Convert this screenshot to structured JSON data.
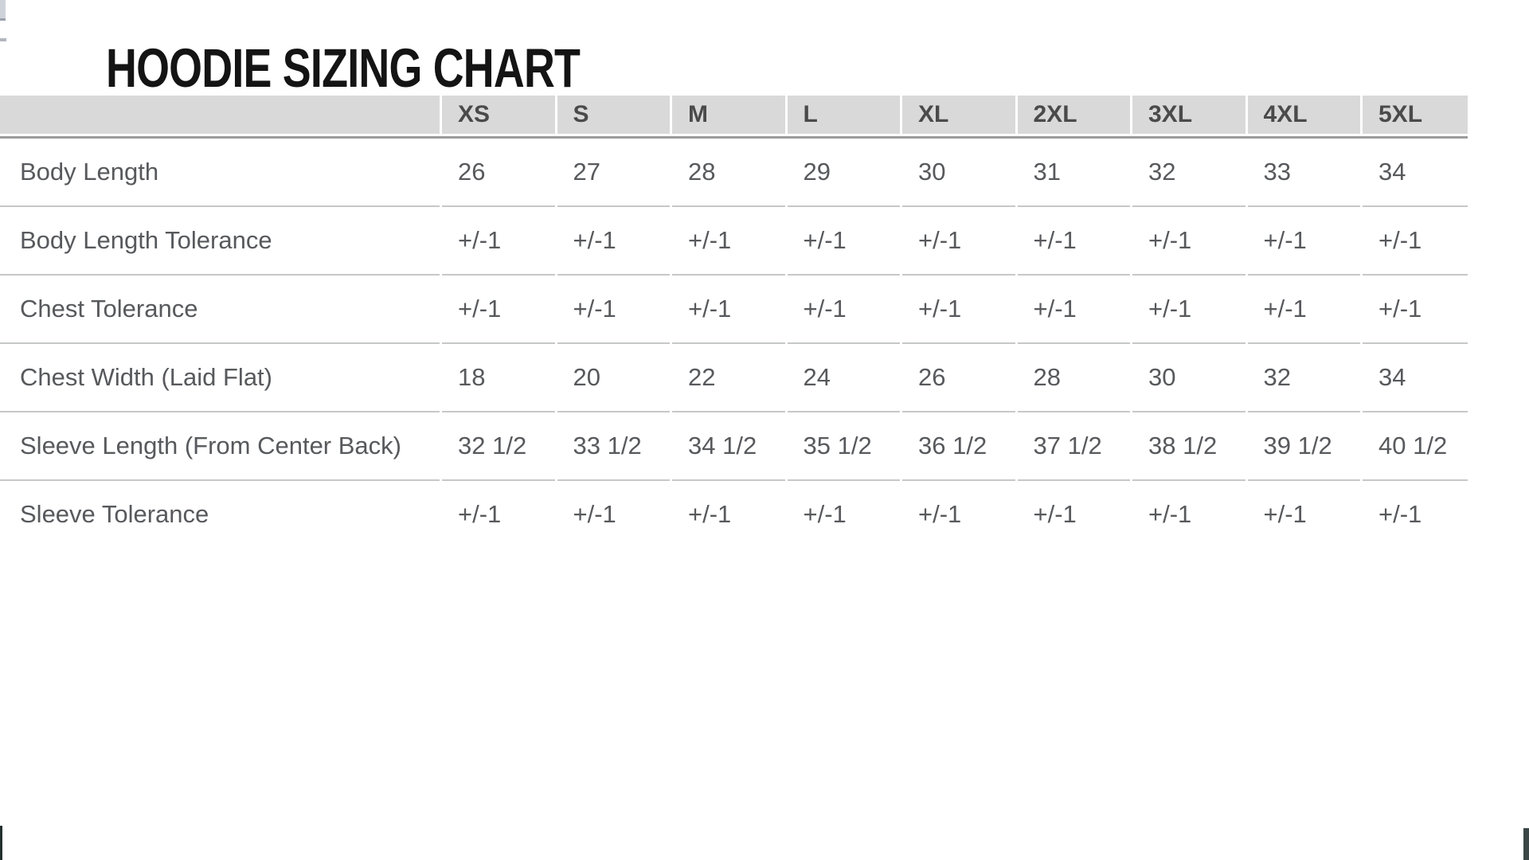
{
  "title": "HOODIE SIZING CHART",
  "table": {
    "columns": [
      "XS",
      "S",
      "M",
      "L",
      "XL",
      "2XL",
      "3XL",
      "4XL",
      "5XL"
    ],
    "rows": [
      {
        "label": "Body Length",
        "values": [
          "26",
          "27",
          "28",
          "29",
          "30",
          "31",
          "32",
          "33",
          "34"
        ]
      },
      {
        "label": "Body Length Tolerance",
        "values": [
          "+/-1",
          "+/-1",
          "+/-1",
          "+/-1",
          "+/-1",
          "+/-1",
          "+/-1",
          "+/-1",
          "+/-1"
        ]
      },
      {
        "label": "Chest Tolerance",
        "values": [
          "+/-1",
          "+/-1",
          "+/-1",
          "+/-1",
          "+/-1",
          "+/-1",
          "+/-1",
          "+/-1",
          "+/-1"
        ]
      },
      {
        "label": "Chest Width (Laid Flat)",
        "values": [
          "18",
          "20",
          "22",
          "24",
          "26",
          "28",
          "30",
          "32",
          "34"
        ]
      },
      {
        "label": "Sleeve Length (From Center Back)",
        "values": [
          "32 1/2",
          "33 1/2",
          "34 1/2",
          "35 1/2",
          "36 1/2",
          "37 1/2",
          "38 1/2",
          "39 1/2",
          "40 1/2"
        ]
      },
      {
        "label": "Sleeve Tolerance",
        "values": [
          "+/-1",
          "+/-1",
          "+/-1",
          "+/-1",
          "+/-1",
          "+/-1",
          "+/-1",
          "+/-1",
          "+/-1"
        ]
      }
    ]
  },
  "colors": {
    "header_bg": "#d9d9d9",
    "header_text": "#4a4a4a",
    "body_text": "#57595c",
    "row_line": "#c6c8c8",
    "header_line": "#9c9c9c",
    "title_text": "#141414",
    "corner_bar": "#2e3b3a"
  }
}
